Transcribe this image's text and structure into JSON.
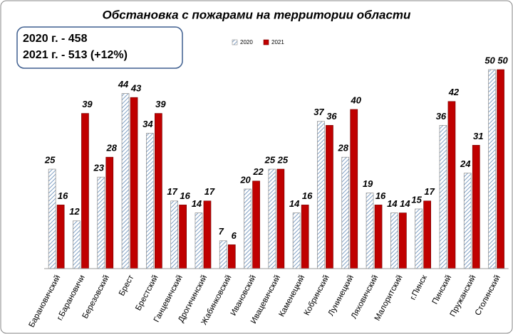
{
  "chart_data": {
    "type": "bar",
    "title": "Обстановка с пожарами на территории области",
    "summary": [
      "2020 г. - 458",
      "2021 г. - 513 (+12%)"
    ],
    "categories": [
      "Барановичский",
      "г.Барановичи",
      "Березовский",
      "Брест",
      "Брестский",
      "Ганцевичский",
      "Дрогичинский",
      "Жабинковский",
      "Ивановский",
      "Ивацевичский",
      "Каменецкий",
      "Кобринский",
      "Лунинецкий",
      "Ляховичский",
      "Малоритский",
      "г.Пинск",
      "Пинский",
      "Пружанский",
      "Столинский"
    ],
    "series": [
      {
        "name": "2020",
        "color": "#b8cce4",
        "values": [
          25,
          12,
          23,
          44,
          34,
          17,
          14,
          7,
          20,
          25,
          14,
          37,
          28,
          19,
          14,
          15,
          36,
          24,
          50
        ]
      },
      {
        "name": "2021",
        "color": "#c00000",
        "values": [
          16,
          39,
          28,
          43,
          39,
          16,
          17,
          6,
          22,
          25,
          16,
          36,
          40,
          16,
          14,
          17,
          42,
          31,
          50
        ]
      }
    ]
  }
}
